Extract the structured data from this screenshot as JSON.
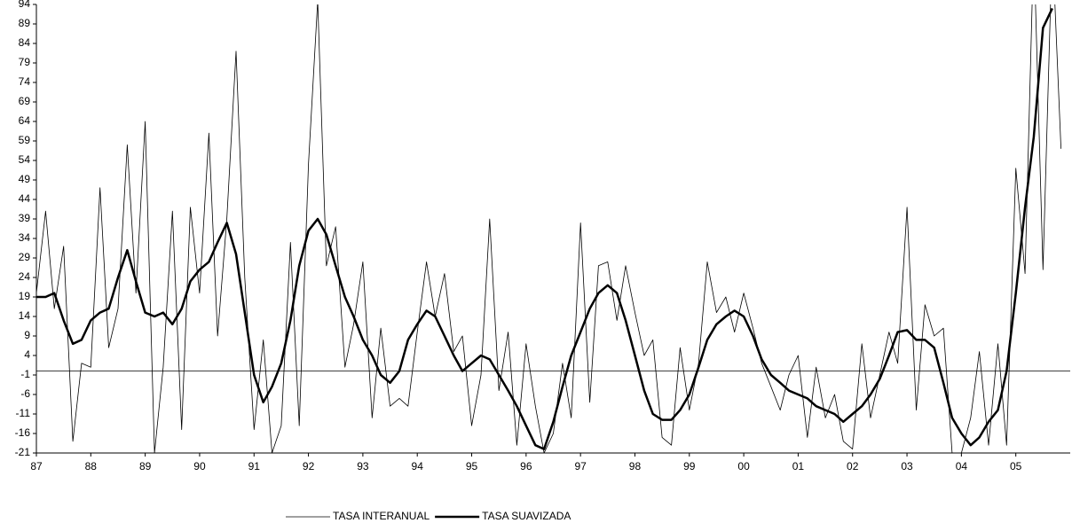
{
  "chart_data": {
    "type": "line",
    "x": [
      1987,
      1987.17,
      1987.33,
      1987.5,
      1987.67,
      1987.83,
      1988,
      1988.17,
      1988.33,
      1988.5,
      1988.67,
      1988.83,
      1989,
      1989.17,
      1989.33,
      1989.5,
      1989.67,
      1989.83,
      1990,
      1990.17,
      1990.33,
      1990.5,
      1990.67,
      1990.83,
      1991,
      1991.17,
      1991.33,
      1991.5,
      1991.67,
      1991.83,
      1992,
      1992.17,
      1992.33,
      1992.5,
      1992.67,
      1992.83,
      1993,
      1993.17,
      1993.33,
      1993.5,
      1993.67,
      1993.83,
      1994,
      1994.17,
      1994.33,
      1994.5,
      1994.67,
      1994.83,
      1995,
      1995.17,
      1995.33,
      1995.5,
      1995.67,
      1995.83,
      1996,
      1996.17,
      1996.33,
      1996.5,
      1996.67,
      1996.83,
      1997,
      1997.17,
      1997.33,
      1997.5,
      1997.67,
      1997.83,
      1998,
      1998.17,
      1998.33,
      1998.5,
      1998.67,
      1998.83,
      1999,
      1999.17,
      1999.33,
      1999.5,
      1999.67,
      1999.83,
      2000,
      2000.17,
      2000.33,
      2000.5,
      2000.67,
      2000.83,
      2001,
      2001.17,
      2001.33,
      2001.5,
      2001.67,
      2001.83,
      2002,
      2002.17,
      2002.33,
      2002.5,
      2002.67,
      2002.83,
      2003,
      2003.17,
      2003.33,
      2003.5,
      2003.67,
      2003.83,
      2004,
      2004.17,
      2004.33,
      2004.5,
      2004.67,
      2004.83,
      2005,
      2005.17,
      2005.33,
      2005.5,
      2005.67,
      2005.83
    ],
    "series": [
      {
        "name": "TASA INTERANUAL",
        "color": "#000000",
        "width": 0.8,
        "values": [
          20,
          41,
          16,
          32,
          -18,
          2,
          1,
          47,
          6,
          16,
          58,
          20,
          64,
          -21,
          1,
          41,
          -15,
          42,
          20,
          61,
          9,
          39,
          82,
          24,
          -15,
          8,
          -21,
          -14,
          33,
          -14,
          53,
          95,
          27,
          37,
          1,
          12,
          28,
          -12,
          11,
          -9,
          -7,
          -9,
          10,
          28,
          14,
          25,
          5,
          9,
          -14,
          -1,
          39,
          -5,
          10,
          -19,
          7,
          -9,
          -21,
          -16,
          2,
          -12,
          38,
          -8,
          27,
          28,
          13,
          27,
          15,
          4,
          8,
          -17,
          -19,
          6,
          -10,
          2,
          28,
          15,
          19,
          10,
          20,
          11,
          2,
          -4,
          -10,
          -1,
          4,
          -17,
          1,
          -12,
          -6,
          -18,
          -20,
          7,
          -12,
          -1,
          10,
          2,
          42,
          -10,
          17,
          9,
          11,
          -21,
          -21,
          -12,
          5,
          -19,
          7,
          -19,
          52,
          25,
          110,
          26,
          110,
          57
        ]
      },
      {
        "name": "TASA SUAVIZADA",
        "color": "#000000",
        "width": 2.5,
        "values": [
          19,
          19,
          20,
          13,
          7,
          8,
          13,
          15,
          16,
          24,
          31,
          23,
          15,
          14,
          15,
          12,
          16,
          23,
          26,
          28,
          33,
          38,
          30,
          15,
          -1,
          -8,
          -4,
          2,
          13,
          27,
          36,
          39,
          35,
          27,
          19,
          14,
          8,
          4,
          -1,
          -3,
          0,
          8,
          12,
          15.5,
          14,
          9,
          4,
          0,
          2,
          4,
          3,
          -1,
          -5,
          -9,
          -14,
          -19,
          -20,
          -13,
          -4,
          4,
          10,
          16,
          20,
          22,
          20,
          13,
          4,
          -5,
          -11,
          -12.5,
          -12.5,
          -10,
          -6,
          1,
          8,
          12,
          14,
          15.5,
          14,
          9,
          3,
          -1,
          -3,
          -5,
          -6,
          -7,
          -9,
          -10,
          -11,
          -13,
          -11,
          -9,
          -6,
          -2,
          4,
          10,
          10.5,
          8,
          8,
          6,
          -3,
          -12,
          -16,
          -19,
          -17,
          -13,
          -10,
          0,
          20,
          42,
          60,
          88,
          93,
          null
        ]
      }
    ],
    "xlim": [
      1987,
      2006
    ],
    "xticks": [
      {
        "value": 1987,
        "label": "87"
      },
      {
        "value": 1988,
        "label": "88"
      },
      {
        "value": 1989,
        "label": "89"
      },
      {
        "value": 1990,
        "label": "90"
      },
      {
        "value": 1991,
        "label": "91"
      },
      {
        "value": 1992,
        "label": "92"
      },
      {
        "value": 1993,
        "label": "93"
      },
      {
        "value": 1994,
        "label": "94"
      },
      {
        "value": 1995,
        "label": "95"
      },
      {
        "value": 1996,
        "label": "96"
      },
      {
        "value": 1997,
        "label": "97"
      },
      {
        "value": 1998,
        "label": "98"
      },
      {
        "value": 1999,
        "label": "99"
      },
      {
        "value": 2000,
        "label": "00"
      },
      {
        "value": 2001,
        "label": "01"
      },
      {
        "value": 2002,
        "label": "02"
      },
      {
        "value": 2003,
        "label": "03"
      },
      {
        "value": 2004,
        "label": "04"
      },
      {
        "value": 2005,
        "label": "05"
      }
    ],
    "ylim": [
      -21,
      94
    ],
    "yticks": [
      -21,
      -16,
      -11,
      -6,
      -1,
      4,
      9,
      14,
      19,
      24,
      29,
      34,
      39,
      44,
      49,
      54,
      59,
      64,
      69,
      74,
      79,
      84,
      89,
      94
    ],
    "baseline": true,
    "legend": "bottom"
  }
}
